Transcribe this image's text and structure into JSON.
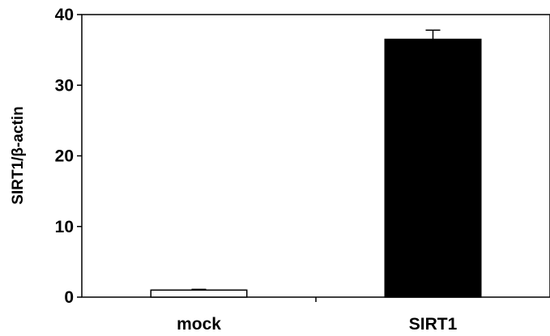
{
  "chart_data": {
    "type": "bar",
    "categories": [
      "mock",
      "SIRT1"
    ],
    "values": [
      1.0,
      36.5
    ],
    "errors": [
      0.1,
      1.3
    ],
    "bar_colors": [
      "#ffffff",
      "#000000"
    ],
    "title": "",
    "xlabel": "",
    "ylabel": "SIRT1/β-actin",
    "ylim": [
      0,
      40
    ],
    "yticks": [
      "0",
      "10",
      "20",
      "30",
      "40"
    ],
    "grid": false,
    "legend": "none"
  }
}
